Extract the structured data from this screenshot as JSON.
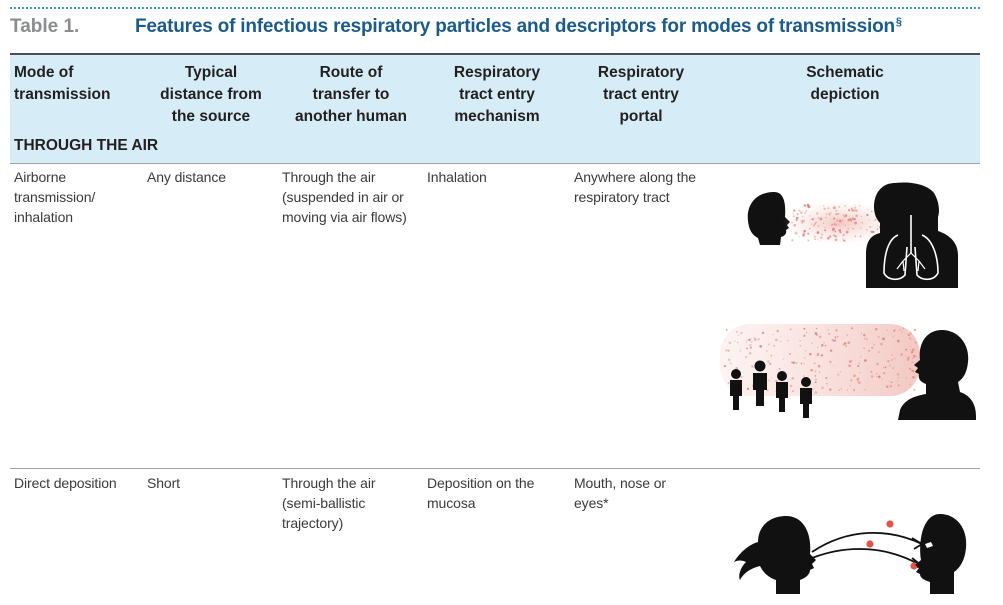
{
  "table": {
    "label": "Table 1.",
    "title": "Features of infectious respiratory particles and descriptors for modes of transmission",
    "title_mark": "§"
  },
  "headers": {
    "mode": [
      "Mode of",
      "transmission"
    ],
    "distance": [
      "Typical",
      "distance from",
      "the source"
    ],
    "route": [
      "Route of",
      "transfer to",
      "another human"
    ],
    "mechanism": [
      "Respiratory",
      "tract entry",
      "mechanism"
    ],
    "portal": [
      "Respiratory",
      "tract entry",
      "portal"
    ],
    "schematic": [
      "Schematic",
      "depiction"
    ]
  },
  "section": {
    "label": "THROUGH THE AIR"
  },
  "rows": [
    {
      "mode": [
        "Airborne",
        "transmission/",
        "inhalation"
      ],
      "distance": [
        "Any distance"
      ],
      "route": [
        "Through the air",
        "(suspended in air or",
        "moving via air flows)"
      ],
      "mechanism": [
        "Inhalation"
      ],
      "portal": [
        "Anywhere along the",
        "respiratory tract"
      ]
    },
    {
      "mode": [
        "Direct deposition"
      ],
      "distance": [
        "Short"
      ],
      "route": [
        "Through the air",
        "(semi-ballistic",
        "trajectory)"
      ],
      "mechanism": [
        "Deposition on the",
        "mucosa"
      ],
      "portal": [
        "Mouth, nose or",
        "eyes*"
      ]
    }
  ],
  "colors": {
    "title": "#1b5b8c",
    "header_bg": "#d6edf7",
    "particles": "#e08a80"
  }
}
